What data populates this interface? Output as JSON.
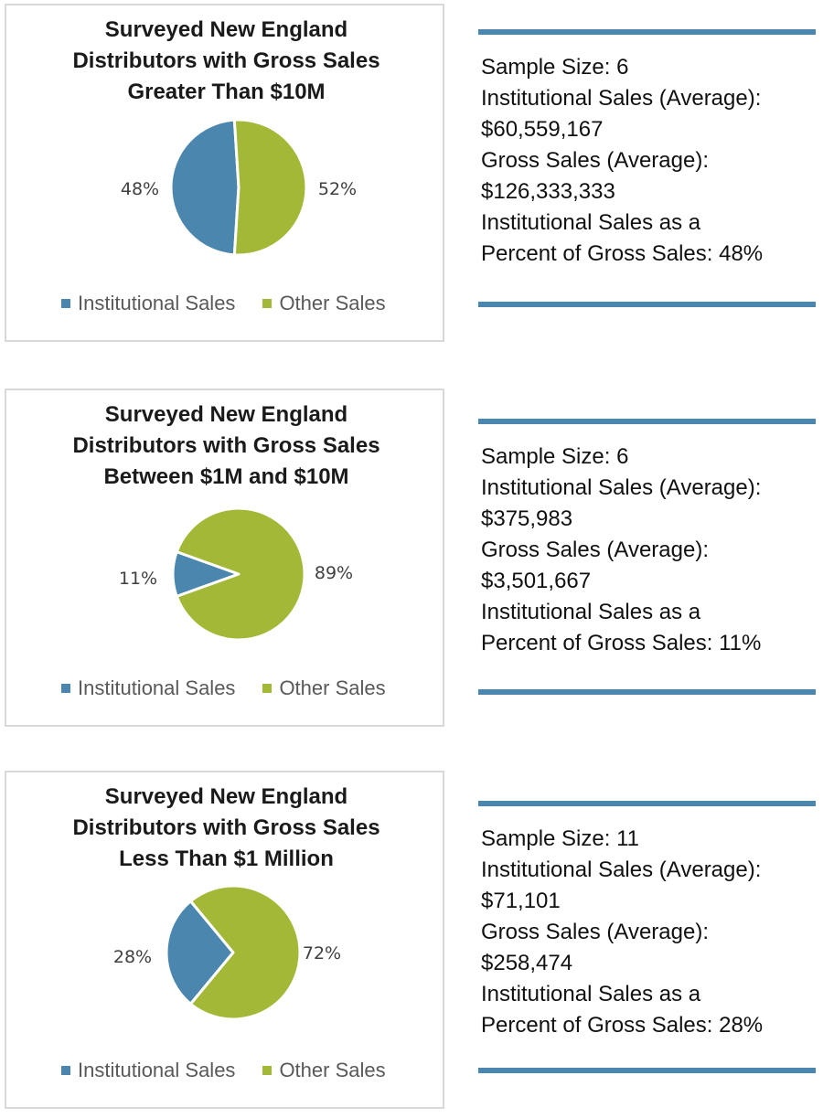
{
  "colors": {
    "institutional": "#4a86ad",
    "other": "#a4b838",
    "rule": "#4a86ad",
    "border": "#d9d9d9"
  },
  "legend": {
    "institutional": "Institutional Sales",
    "other": "Other Sales"
  },
  "sections": [
    {
      "title_lines": [
        "Surveyed New England",
        "Distributors with Gross Sales",
        "Greater Than $10M"
      ],
      "inst_label": "48%",
      "other_label": "52%",
      "info": {
        "sample_size": "Sample Size: 6",
        "inst_avg_label": "Institutional Sales (Average):",
        "inst_avg_value": "$60,559,167",
        "gross_avg_label": "Gross Sales (Average):",
        "gross_avg_value": "$126,333,333",
        "pct_line1": "Institutional Sales as a",
        "pct_line2": "Percent of Gross Sales: 48%"
      }
    },
    {
      "title_lines": [
        "Surveyed New England",
        "Distributors with Gross Sales",
        "Between $1M and $10M"
      ],
      "inst_label": "11%",
      "other_label": "89%",
      "info": {
        "sample_size": "Sample Size: 6",
        "inst_avg_label": "Institutional Sales (Average):",
        "inst_avg_value": "$375,983",
        "gross_avg_label": "Gross Sales (Average):",
        "gross_avg_value": "$3,501,667",
        "pct_line1": "Institutional Sales as a",
        "pct_line2": "Percent of Gross Sales: 11%"
      }
    },
    {
      "title_lines": [
        "Surveyed New England",
        "Distributors with Gross Sales",
        "Less Than $1 Million"
      ],
      "inst_label": "28%",
      "other_label": "72%",
      "info": {
        "sample_size": "Sample Size: 11",
        "inst_avg_label": "Institutional Sales (Average):",
        "inst_avg_value": "$71,101",
        "gross_avg_label": "Gross Sales (Average):",
        "gross_avg_value": "$258,474",
        "pct_line1": "Institutional Sales as a",
        "pct_line2": "Percent of Gross Sales: 28%"
      }
    }
  ],
  "chart_data": [
    {
      "type": "pie",
      "title": "Surveyed New England Distributors with Gross Sales Greater Than $10M",
      "categories": [
        "Institutional Sales",
        "Other Sales"
      ],
      "values": [
        48,
        52
      ],
      "legend_position": "bottom"
    },
    {
      "type": "pie",
      "title": "Surveyed New England Distributors with Gross Sales Between $1M and $10M",
      "categories": [
        "Institutional Sales",
        "Other Sales"
      ],
      "values": [
        11,
        89
      ],
      "legend_position": "bottom"
    },
    {
      "type": "pie",
      "title": "Surveyed New England Distributors with Gross Sales Less Than $1 Million",
      "categories": [
        "Institutional Sales",
        "Other Sales"
      ],
      "values": [
        28,
        72
      ],
      "legend_position": "bottom"
    }
  ]
}
